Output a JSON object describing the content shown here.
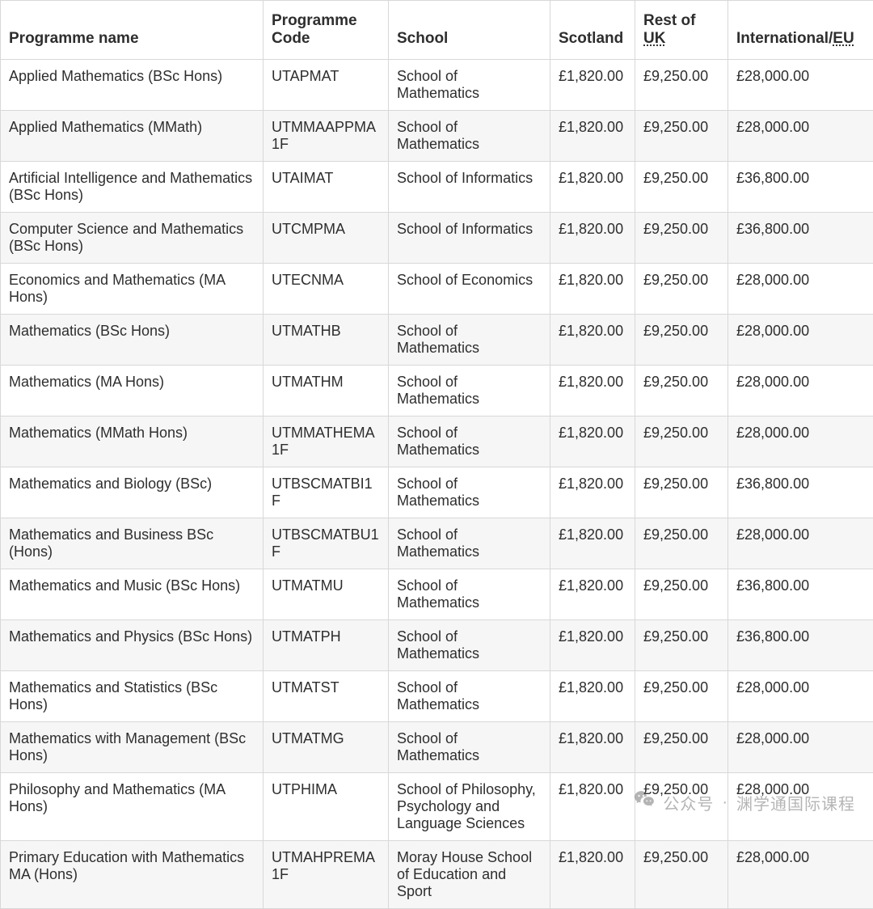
{
  "columns": {
    "programme_name": "Programme name",
    "programme_code": "Programme Code",
    "school": "School",
    "scotland": "Scotland",
    "rest_of_uk_prefix": "Rest of ",
    "rest_of_uk_abbr": "UK",
    "international_prefix": "International/",
    "international_abbr": "EU"
  },
  "rows": [
    {
      "name": "Applied Mathematics (BSc Hons)",
      "code": "UTAPMAT",
      "school": "School of Mathematics",
      "scotland": "£1,820.00",
      "restuk": "£9,250.00",
      "intl": "£28,000.00"
    },
    {
      "name": "Applied Mathematics (MMath)",
      "code": "UTMMAAPPMA1F",
      "school": "School of Mathematics",
      "scotland": "£1,820.00",
      "restuk": "£9,250.00",
      "intl": "£28,000.00"
    },
    {
      "name": "Artificial Intelligence and Mathematics (BSc Hons)",
      "code": "UTAIMAT",
      "school": "School of Informatics",
      "scotland": "£1,820.00",
      "restuk": "£9,250.00",
      "intl": "£36,800.00"
    },
    {
      "name": "Computer Science and Mathematics (BSc Hons)",
      "code": "UTCMPMA",
      "school": "School of Informatics",
      "scotland": "£1,820.00",
      "restuk": "£9,250.00",
      "intl": "£36,800.00"
    },
    {
      "name": "Economics and Mathematics (MA Hons)",
      "code": "UTECNMA",
      "school": "School of Economics",
      "scotland": "£1,820.00",
      "restuk": "£9,250.00",
      "intl": "£28,000.00"
    },
    {
      "name": "Mathematics (BSc Hons)",
      "code": "UTMATHB",
      "school": "School of Mathematics",
      "scotland": "£1,820.00",
      "restuk": "£9,250.00",
      "intl": "£28,000.00"
    },
    {
      "name": "Mathematics (MA Hons)",
      "code": "UTMATHM",
      "school": "School of Mathematics",
      "scotland": "£1,820.00",
      "restuk": "£9,250.00",
      "intl": "£28,000.00"
    },
    {
      "name": "Mathematics (MMath Hons)",
      "code": "UTMMATHEMA1F",
      "school": "School of Mathematics",
      "scotland": "£1,820.00",
      "restuk": "£9,250.00",
      "intl": "£28,000.00"
    },
    {
      "name": "Mathematics and Biology (BSc)",
      "code": "UTBSCMATBI1F",
      "school": "School of Mathematics",
      "scotland": "£1,820.00",
      "restuk": "£9,250.00",
      "intl": "£36,800.00"
    },
    {
      "name": "Mathematics and Business BSc (Hons)",
      "code": "UTBSCMATBU1F",
      "school": "School of Mathematics",
      "scotland": "£1,820.00",
      "restuk": "£9,250.00",
      "intl": "£28,000.00"
    },
    {
      "name": "Mathematics and Music (BSc Hons)",
      "code": "UTMATMU",
      "school": "School of Mathematics",
      "scotland": "£1,820.00",
      "restuk": "£9,250.00",
      "intl": "£36,800.00"
    },
    {
      "name": "Mathematics and Physics (BSc Hons)",
      "code": "UTMATPH",
      "school": "School of Mathematics",
      "scotland": "£1,820.00",
      "restuk": "£9,250.00",
      "intl": "£36,800.00"
    },
    {
      "name": "Mathematics and Statistics (BSc Hons)",
      "code": "UTMATST",
      "school": "School of Mathematics",
      "scotland": "£1,820.00",
      "restuk": "£9,250.00",
      "intl": "£28,000.00"
    },
    {
      "name": "Mathematics with Management (BSc Hons)",
      "code": "UTMATMG",
      "school": "School of Mathematics",
      "scotland": "£1,820.00",
      "restuk": "£9,250.00",
      "intl": "£28,000.00"
    },
    {
      "name": "Philosophy and Mathematics (MA Hons)",
      "code": "UTPHIMA",
      "school": "School of Philosophy, Psychology and Language Sciences",
      "scotland": "£1,820.00",
      "restuk": "£9,250.00",
      "intl": "£28,000.00"
    },
    {
      "name": "Primary Education with Mathematics MA (Hons)",
      "code": "UTMAHPREMA1F",
      "school": "Moray House School of Education and Sport",
      "scotland": "£1,820.00",
      "restuk": "£9,250.00",
      "intl": "£28,000.00"
    }
  ],
  "watermark": {
    "label": "公众号",
    "separator": "·",
    "source": "渊学通国际课程"
  },
  "style": {
    "border_color": "#d8d8d8",
    "text_color": "#2e2e2e",
    "alt_row_bg": "#f6f6f6",
    "font_size_body": 18,
    "font_size_header": 19
  }
}
